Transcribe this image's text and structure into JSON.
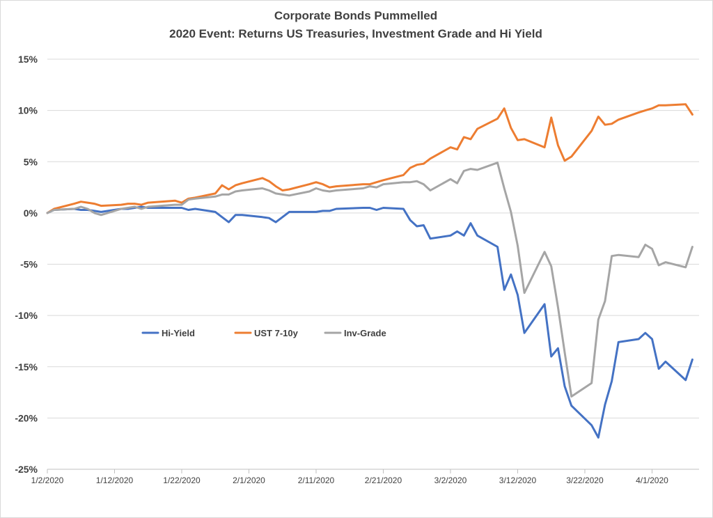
{
  "chart_data": {
    "type": "line",
    "title": "Corporate Bonds Pummelled",
    "subtitle": "2020  Event: Returns US Treasuries, Investment Grade and Hi Yield",
    "xlabel": "",
    "ylabel": "",
    "xlim": [
      "1/2/2020",
      "4/8/2020"
    ],
    "ylim": [
      -25,
      15
    ],
    "y_ticks": [
      "15%",
      "10%",
      "5%",
      "0%",
      "-5%",
      "-10%",
      "-15%",
      "-20%",
      "-25%"
    ],
    "x_ticks": [
      "1/2/2020",
      "1/12/2020",
      "1/22/2020",
      "2/1/2020",
      "2/11/2020",
      "2/21/2020",
      "3/2/2020",
      "3/12/2020",
      "3/22/2020",
      "4/1/2020"
    ],
    "grid": "horizontal",
    "legend_position": "center-left",
    "series": [
      {
        "name": "Hi-Yield",
        "color": "#4472c4",
        "points": [
          [
            "1/2/2020",
            0
          ],
          [
            "1/3/2020",
            0.3
          ],
          [
            "1/6/2020",
            0.4
          ],
          [
            "1/7/2020",
            0.3
          ],
          [
            "1/8/2020",
            0.3
          ],
          [
            "1/9/2020",
            0.2
          ],
          [
            "1/10/2020",
            0.1
          ],
          [
            "1/13/2020",
            0.4
          ],
          [
            "1/14/2020",
            0.4
          ],
          [
            "1/15/2020",
            0.5
          ],
          [
            "1/16/2020",
            0.6
          ],
          [
            "1/17/2020",
            0.5
          ],
          [
            "1/21/2020",
            0.5
          ],
          [
            "1/22/2020",
            0.5
          ],
          [
            "1/23/2020",
            0.3
          ],
          [
            "1/24/2020",
            0.4
          ],
          [
            "1/27/2020",
            0.1
          ],
          [
            "1/28/2020",
            -0.4
          ],
          [
            "1/29/2020",
            -0.9
          ],
          [
            "1/30/2020",
            -0.2
          ],
          [
            "1/31/2020",
            -0.2
          ],
          [
            "2/3/2020",
            -0.4
          ],
          [
            "2/4/2020",
            -0.5
          ],
          [
            "2/5/2020",
            -0.9
          ],
          [
            "2/6/2020",
            -0.4
          ],
          [
            "2/7/2020",
            0.1
          ],
          [
            "2/10/2020",
            0.1
          ],
          [
            "2/11/2020",
            0.1
          ],
          [
            "2/12/2020",
            0.2
          ],
          [
            "2/13/2020",
            0.2
          ],
          [
            "2/14/2020",
            0.4
          ],
          [
            "2/18/2020",
            0.5
          ],
          [
            "2/19/2020",
            0.5
          ],
          [
            "2/20/2020",
            0.3
          ],
          [
            "2/21/2020",
            0.5
          ],
          [
            "2/24/2020",
            0.4
          ],
          [
            "2/25/2020",
            -0.7
          ],
          [
            "2/26/2020",
            -1.3
          ],
          [
            "2/27/2020",
            -1.2
          ],
          [
            "2/28/2020",
            -2.5
          ],
          [
            "3/2/2020",
            -2.2
          ],
          [
            "3/3/2020",
            -1.8
          ],
          [
            "3/4/2020",
            -2.2
          ],
          [
            "3/5/2020",
            -1.0
          ],
          [
            "3/6/2020",
            -2.2
          ],
          [
            "3/9/2020",
            -3.3
          ],
          [
            "3/10/2020",
            -7.5
          ],
          [
            "3/11/2020",
            -6.0
          ],
          [
            "3/12/2020",
            -8.0
          ],
          [
            "3/13/2020",
            -11.7
          ],
          [
            "3/16/2020",
            -8.9
          ],
          [
            "3/17/2020",
            -14.0
          ],
          [
            "3/18/2020",
            -13.2
          ],
          [
            "3/19/2020",
            -16.9
          ],
          [
            "3/20/2020",
            -18.8
          ],
          [
            "3/23/2020",
            -20.7
          ],
          [
            "3/24/2020",
            -21.9
          ],
          [
            "3/25/2020",
            -18.7
          ],
          [
            "3/26/2020",
            -16.4
          ],
          [
            "3/27/2020",
            -12.6
          ],
          [
            "3/30/2020",
            -12.3
          ],
          [
            "3/31/2020",
            -11.7
          ],
          [
            "4/1/2020",
            -12.3
          ],
          [
            "4/2/2020",
            -15.2
          ],
          [
            "4/3/2020",
            -14.5
          ],
          [
            "4/6/2020",
            -16.3
          ],
          [
            "4/7/2020",
            -14.3
          ]
        ]
      },
      {
        "name": "UST 7-10y",
        "color": "#ed7d31",
        "points": [
          [
            "1/2/2020",
            0
          ],
          [
            "1/3/2020",
            0.4
          ],
          [
            "1/6/2020",
            0.9
          ],
          [
            "1/7/2020",
            1.1
          ],
          [
            "1/8/2020",
            1.0
          ],
          [
            "1/9/2020",
            0.9
          ],
          [
            "1/10/2020",
            0.7
          ],
          [
            "1/13/2020",
            0.8
          ],
          [
            "1/14/2020",
            0.9
          ],
          [
            "1/15/2020",
            0.9
          ],
          [
            "1/16/2020",
            0.8
          ],
          [
            "1/17/2020",
            1.0
          ],
          [
            "1/21/2020",
            1.2
          ],
          [
            "1/22/2020",
            1.0
          ],
          [
            "1/23/2020",
            1.4
          ],
          [
            "1/24/2020",
            1.5
          ],
          [
            "1/27/2020",
            1.9
          ],
          [
            "1/28/2020",
            2.7
          ],
          [
            "1/29/2020",
            2.3
          ],
          [
            "1/30/2020",
            2.7
          ],
          [
            "1/31/2020",
            2.9
          ],
          [
            "2/3/2020",
            3.4
          ],
          [
            "2/4/2020",
            3.1
          ],
          [
            "2/5/2020",
            2.6
          ],
          [
            "2/6/2020",
            2.2
          ],
          [
            "2/7/2020",
            2.3
          ],
          [
            "2/10/2020",
            2.8
          ],
          [
            "2/11/2020",
            3.0
          ],
          [
            "2/12/2020",
            2.8
          ],
          [
            "2/13/2020",
            2.5
          ],
          [
            "2/14/2020",
            2.6
          ],
          [
            "2/18/2020",
            2.8
          ],
          [
            "2/19/2020",
            2.8
          ],
          [
            "2/20/2020",
            3.0
          ],
          [
            "2/21/2020",
            3.2
          ],
          [
            "2/24/2020",
            3.7
          ],
          [
            "2/25/2020",
            4.4
          ],
          [
            "2/26/2020",
            4.7
          ],
          [
            "2/27/2020",
            4.8
          ],
          [
            "2/28/2020",
            5.3
          ],
          [
            "3/2/2020",
            6.4
          ],
          [
            "3/3/2020",
            6.2
          ],
          [
            "3/4/2020",
            7.4
          ],
          [
            "3/5/2020",
            7.2
          ],
          [
            "3/6/2020",
            8.2
          ],
          [
            "3/9/2020",
            9.2
          ],
          [
            "3/10/2020",
            10.2
          ],
          [
            "3/11/2020",
            8.3
          ],
          [
            "3/12/2020",
            7.1
          ],
          [
            "3/13/2020",
            7.2
          ],
          [
            "3/16/2020",
            6.4
          ],
          [
            "3/17/2020",
            9.3
          ],
          [
            "3/18/2020",
            6.6
          ],
          [
            "3/19/2020",
            5.1
          ],
          [
            "3/20/2020",
            5.5
          ],
          [
            "3/23/2020",
            8.0
          ],
          [
            "3/24/2020",
            9.4
          ],
          [
            "3/25/2020",
            8.6
          ],
          [
            "3/26/2020",
            8.7
          ],
          [
            "3/27/2020",
            9.1
          ],
          [
            "3/30/2020",
            9.8
          ],
          [
            "3/31/2020",
            10.0
          ],
          [
            "4/1/2020",
            10.2
          ],
          [
            "4/2/2020",
            10.5
          ],
          [
            "4/3/2020",
            10.5
          ],
          [
            "4/6/2020",
            10.6
          ],
          [
            "4/7/2020",
            9.6
          ]
        ]
      },
      {
        "name": "Inv-Grade",
        "color": "#a5a5a5",
        "points": [
          [
            "1/2/2020",
            0
          ],
          [
            "1/3/2020",
            0.3
          ],
          [
            "1/6/2020",
            0.4
          ],
          [
            "1/7/2020",
            0.6
          ],
          [
            "1/8/2020",
            0.4
          ],
          [
            "1/9/2020",
            0
          ],
          [
            "1/10/2020",
            -0.2
          ],
          [
            "1/13/2020",
            0.4
          ],
          [
            "1/14/2020",
            0.5
          ],
          [
            "1/15/2020",
            0.6
          ],
          [
            "1/16/2020",
            0.4
          ],
          [
            "1/17/2020",
            0.6
          ],
          [
            "1/21/2020",
            0.8
          ],
          [
            "1/22/2020",
            0.8
          ],
          [
            "1/23/2020",
            1.3
          ],
          [
            "1/24/2020",
            1.4
          ],
          [
            "1/27/2020",
            1.6
          ],
          [
            "1/28/2020",
            1.8
          ],
          [
            "1/29/2020",
            1.8
          ],
          [
            "1/30/2020",
            2.1
          ],
          [
            "1/31/2020",
            2.2
          ],
          [
            "2/3/2020",
            2.4
          ],
          [
            "2/4/2020",
            2.2
          ],
          [
            "2/5/2020",
            1.9
          ],
          [
            "2/6/2020",
            1.8
          ],
          [
            "2/7/2020",
            1.7
          ],
          [
            "2/10/2020",
            2.1
          ],
          [
            "2/11/2020",
            2.4
          ],
          [
            "2/12/2020",
            2.2
          ],
          [
            "2/13/2020",
            2.1
          ],
          [
            "2/14/2020",
            2.2
          ],
          [
            "2/18/2020",
            2.4
          ],
          [
            "2/19/2020",
            2.6
          ],
          [
            "2/20/2020",
            2.5
          ],
          [
            "2/21/2020",
            2.8
          ],
          [
            "2/24/2020",
            3.0
          ],
          [
            "2/25/2020",
            3.0
          ],
          [
            "2/26/2020",
            3.1
          ],
          [
            "2/27/2020",
            2.8
          ],
          [
            "2/28/2020",
            2.2
          ],
          [
            "3/2/2020",
            3.3
          ],
          [
            "3/3/2020",
            2.9
          ],
          [
            "3/4/2020",
            4.1
          ],
          [
            "3/5/2020",
            4.3
          ],
          [
            "3/6/2020",
            4.2
          ],
          [
            "3/9/2020",
            4.9
          ],
          [
            "3/10/2020",
            2.4
          ],
          [
            "3/11/2020",
            0.1
          ],
          [
            "3/12/2020",
            -3.2
          ],
          [
            "3/13/2020",
            -7.8
          ],
          [
            "3/16/2020",
            -3.8
          ],
          [
            "3/17/2020",
            -5.2
          ],
          [
            "3/18/2020",
            -9.2
          ],
          [
            "3/19/2020",
            -13.6
          ],
          [
            "3/20/2020",
            -17.9
          ],
          [
            "3/23/2020",
            -16.6
          ],
          [
            "3/24/2020",
            -10.4
          ],
          [
            "3/25/2020",
            -8.6
          ],
          [
            "3/26/2020",
            -4.2
          ],
          [
            "3/27/2020",
            -4.1
          ],
          [
            "3/30/2020",
            -4.3
          ],
          [
            "3/31/2020",
            -3.1
          ],
          [
            "4/1/2020",
            -3.5
          ],
          [
            "4/2/2020",
            -5.1
          ],
          [
            "4/3/2020",
            -4.8
          ],
          [
            "4/6/2020",
            -5.3
          ],
          [
            "4/7/2020",
            -3.3
          ]
        ]
      }
    ]
  }
}
